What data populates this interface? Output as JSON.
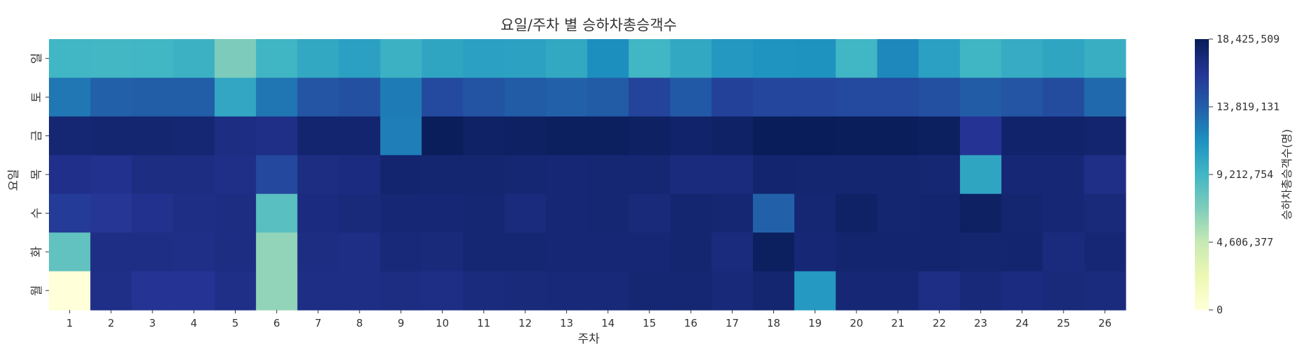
{
  "chart_data": {
    "type": "heatmap",
    "title": "요일/주차 별 승하차총승객수",
    "xlabel": "주차",
    "ylabel": "요일",
    "x_categories": [
      "1",
      "2",
      "3",
      "4",
      "5",
      "6",
      "7",
      "8",
      "9",
      "10",
      "11",
      "12",
      "13",
      "14",
      "15",
      "16",
      "17",
      "18",
      "19",
      "20",
      "21",
      "22",
      "23",
      "24",
      "25",
      "26"
    ],
    "y_categories": [
      "일",
      "토",
      "금",
      "목",
      "수",
      "화",
      "월"
    ],
    "values": [
      [
        9200000,
        9100000,
        9200000,
        9500000,
        7000000,
        9300000,
        10100000,
        10600000,
        9500000,
        10300000,
        10600000,
        10500000,
        10100000,
        11600000,
        9200000,
        10100000,
        11100000,
        11300000,
        11400000,
        9200000,
        11900000,
        10600000,
        9300000,
        9900000,
        10300000,
        9700000
      ],
      [
        12700000,
        13700000,
        13900000,
        13900000,
        10200000,
        12800000,
        14300000,
        14600000,
        12500000,
        14900000,
        14400000,
        14000000,
        13700000,
        14000000,
        15300000,
        14100000,
        15400000,
        15100000,
        15100000,
        14900000,
        14900000,
        14600000,
        14000000,
        14300000,
        14800000,
        13300000
      ],
      [
        17400000,
        17500000,
        17500000,
        17400000,
        16800000,
        16600000,
        17600000,
        17600000,
        12400000,
        18300000,
        17900000,
        18000000,
        18100000,
        18100000,
        18000000,
        17700000,
        17900000,
        18400000,
        18400000,
        18300000,
        18300000,
        18100000,
        16100000,
        17700000,
        17700000,
        17600000
      ],
      [
        16500000,
        16400000,
        16800000,
        16800000,
        16600000,
        15000000,
        16800000,
        16900000,
        17600000,
        17500000,
        17500000,
        17400000,
        17300000,
        17400000,
        17400000,
        17000000,
        17000000,
        17600000,
        17500000,
        17500000,
        17500000,
        17400000,
        10300000,
        17300000,
        17300000,
        16600000
      ],
      [
        15700000,
        16000000,
        16400000,
        16700000,
        16800000,
        8300000,
        16900000,
        17100000,
        17300000,
        17300000,
        17400000,
        17000000,
        17300000,
        17400000,
        17100000,
        17500000,
        17400000,
        13700000,
        17400000,
        17900000,
        17500000,
        17600000,
        18000000,
        17500000,
        17300000,
        17100000
      ],
      [
        8000000,
        16700000,
        16700000,
        16600000,
        16800000,
        6300000,
        16800000,
        16700000,
        17200000,
        17100000,
        17400000,
        17400000,
        17300000,
        17300000,
        17300000,
        17500000,
        17000000,
        18100000,
        17300000,
        17600000,
        17600000,
        17600000,
        17500000,
        17600000,
        17000000,
        17300000
      ],
      [
        0,
        16600000,
        16100000,
        16100000,
        16600000,
        6300000,
        16700000,
        16700000,
        16800000,
        16700000,
        17000000,
        17100000,
        17200000,
        17200000,
        17400000,
        17400000,
        17200000,
        17500000,
        11000000,
        17300000,
        17300000,
        16700000,
        17200000,
        16900000,
        17100000,
        17000000
      ]
    ],
    "vmin": 0,
    "vmax": 18425509,
    "colormap": "YlGnBu",
    "colorbar": {
      "label": "승하차총승객수(명)",
      "ticks": [
        {
          "value": 0,
          "label": "0"
        },
        {
          "value": 4606377,
          "label": "4,606,377"
        },
        {
          "value": 9212754,
          "label": "9,212,754"
        },
        {
          "value": 13819131,
          "label": "13,819,131"
        },
        {
          "value": 18425509,
          "label": "18,425,509"
        }
      ]
    }
  }
}
